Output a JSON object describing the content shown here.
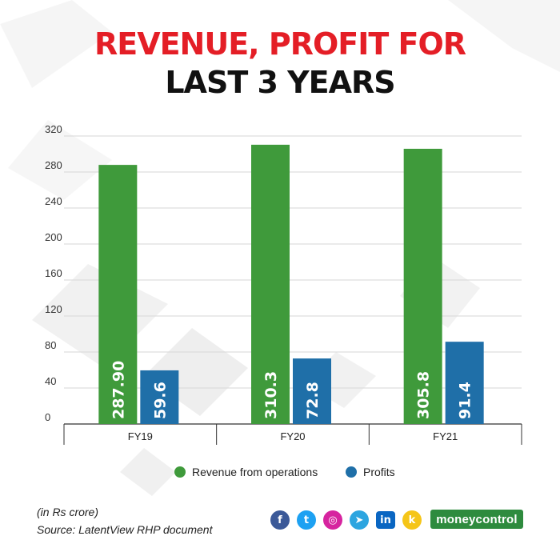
{
  "title_line1": "REVENUE, PROFIT FOR",
  "title_line2": "LAST 3 YEARS",
  "colors": {
    "title_accent": "#e41e26",
    "revenue": "#3f9a3b",
    "profits": "#1f6fa8",
    "brand": "#2e8b3e"
  },
  "chart_data": {
    "type": "bar",
    "categories": [
      "FY19",
      "FY20",
      "FY21"
    ],
    "series": [
      {
        "name": "Revenue from operations",
        "values": [
          287.9,
          310.3,
          305.8
        ],
        "labels": [
          "287.90",
          "310.3",
          "305.8"
        ],
        "color": "#3f9a3b"
      },
      {
        "name": "Profits",
        "values": [
          59.6,
          72.8,
          91.4
        ],
        "labels": [
          "59.6",
          "72.8",
          "91.4"
        ],
        "color": "#1f6fa8"
      }
    ],
    "yticks": [
      0,
      40,
      80,
      120,
      160,
      200,
      240,
      280,
      320
    ],
    "ylim": [
      0,
      320
    ],
    "grid": true,
    "legend_position": "bottom",
    "data_label_orientation": "vertical"
  },
  "notes": {
    "unit": "(in Rs crore)",
    "source": "Source: LatentView RHP document"
  },
  "social_icons": [
    {
      "name": "facebook-icon",
      "glyph": "f",
      "color": "#3b5998"
    },
    {
      "name": "twitter-icon",
      "glyph": "t",
      "color": "#1da1f2"
    },
    {
      "name": "instagram-icon",
      "glyph": "◎",
      "color": "#d6249f"
    },
    {
      "name": "telegram-icon",
      "glyph": "➤",
      "color": "#2ca5e0"
    },
    {
      "name": "linkedin-icon",
      "glyph": "in",
      "color": "#0a66c2"
    },
    {
      "name": "koo-icon",
      "glyph": "k",
      "color": "#f5c518"
    }
  ],
  "brand": {
    "name": "moneycontrol"
  }
}
